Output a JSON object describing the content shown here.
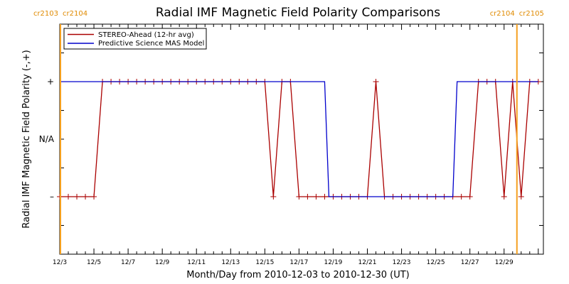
{
  "chart_data": {
    "type": "line",
    "title": "Radial IMF Magnetic Field Polarity Comparisons",
    "xlabel": "Month/Day from 2010-12-03 to 2010-12-30 (UT)",
    "ylabel": "Radial IMF Magnetic Field Polarity (-,+)",
    "xlim": [
      "2010-12-03",
      "2010-12-30"
    ],
    "ylim": [
      -2,
      2
    ],
    "x_ticks": [
      "12/3",
      "12/5",
      "12/7",
      "12/9",
      "12/11",
      "12/13",
      "12/15",
      "12/17",
      "12/19",
      "12/21",
      "12/23",
      "12/25",
      "12/27",
      "12/29"
    ],
    "y_ticks": [
      {
        "value": 1,
        "label": "+"
      },
      {
        "value": 0,
        "label": "N/A"
      },
      {
        "value": -1,
        "label": "–"
      }
    ],
    "carrington_markers": [
      {
        "x": "2010-12-03 00:00",
        "label_left": "cr2103",
        "label_right": "cr2104",
        "position": "top-left"
      },
      {
        "x": "2010-12-29 18:00",
        "label_left": "cr2104",
        "label_right": "cr2105",
        "position": "top-right"
      }
    ],
    "legend": {
      "placement": "top-left",
      "entries": [
        "STEREO-Ahead (12-hr avg)",
        "Predictive Science MAS Model"
      ]
    },
    "series": [
      {
        "name": "STEREO-Ahead (12-hr avg)",
        "color": "#aa0000",
        "marker": "plus",
        "points": [
          [
            "2010-12-03 00:00",
            -1
          ],
          [
            "2010-12-03 12:00",
            -1
          ],
          [
            "2010-12-04 00:00",
            -1
          ],
          [
            "2010-12-04 12:00",
            -1
          ],
          [
            "2010-12-05 00:00",
            -1
          ],
          [
            "2010-12-05 12:00",
            1
          ],
          [
            "2010-12-06 00:00",
            1
          ],
          [
            "2010-12-06 12:00",
            1
          ],
          [
            "2010-12-07 00:00",
            1
          ],
          [
            "2010-12-07 12:00",
            1
          ],
          [
            "2010-12-08 00:00",
            1
          ],
          [
            "2010-12-08 12:00",
            1
          ],
          [
            "2010-12-09 00:00",
            1
          ],
          [
            "2010-12-09 12:00",
            1
          ],
          [
            "2010-12-10 00:00",
            1
          ],
          [
            "2010-12-10 12:00",
            1
          ],
          [
            "2010-12-11 00:00",
            1
          ],
          [
            "2010-12-11 12:00",
            1
          ],
          [
            "2010-12-12 00:00",
            1
          ],
          [
            "2010-12-12 12:00",
            1
          ],
          [
            "2010-12-13 00:00",
            1
          ],
          [
            "2010-12-13 12:00",
            1
          ],
          [
            "2010-12-14 00:00",
            1
          ],
          [
            "2010-12-14 12:00",
            1
          ],
          [
            "2010-12-15 00:00",
            1
          ],
          [
            "2010-12-15 12:00",
            -1
          ],
          [
            "2010-12-16 00:00",
            1
          ],
          [
            "2010-12-16 12:00",
            1
          ],
          [
            "2010-12-17 00:00",
            -1
          ],
          [
            "2010-12-17 12:00",
            -1
          ],
          [
            "2010-12-18 00:00",
            -1
          ],
          [
            "2010-12-18 12:00",
            -1
          ],
          [
            "2010-12-19 00:00",
            -1
          ],
          [
            "2010-12-19 12:00",
            -1
          ],
          [
            "2010-12-20 00:00",
            -1
          ],
          [
            "2010-12-20 12:00",
            -1
          ],
          [
            "2010-12-21 00:00",
            -1
          ],
          [
            "2010-12-21 12:00",
            1
          ],
          [
            "2010-12-22 00:00",
            -1
          ],
          [
            "2010-12-22 12:00",
            -1
          ],
          [
            "2010-12-23 00:00",
            -1
          ],
          [
            "2010-12-23 12:00",
            -1
          ],
          [
            "2010-12-24 00:00",
            -1
          ],
          [
            "2010-12-24 12:00",
            -1
          ],
          [
            "2010-12-25 00:00",
            -1
          ],
          [
            "2010-12-25 12:00",
            -1
          ],
          [
            "2010-12-26 00:00",
            -1
          ],
          [
            "2010-12-26 12:00",
            -1
          ],
          [
            "2010-12-27 00:00",
            -1
          ],
          [
            "2010-12-27 12:00",
            1
          ],
          [
            "2010-12-28 00:00",
            1
          ],
          [
            "2010-12-28 12:00",
            1
          ],
          [
            "2010-12-29 00:00",
            -1
          ],
          [
            "2010-12-29 12:00",
            1
          ],
          [
            "2010-12-30 00:00",
            -1
          ],
          [
            "2010-12-30 12:00",
            1
          ],
          [
            "2010-12-31 00:00",
            1
          ]
        ]
      },
      {
        "name": "Predictive Science MAS Model",
        "color": "#0000cc",
        "marker": "none",
        "points": [
          [
            "2010-12-03 00:00",
            1
          ],
          [
            "2010-12-18 12:00",
            1
          ],
          [
            "2010-12-18 18:00",
            -1
          ],
          [
            "2010-12-26 00:00",
            -1
          ],
          [
            "2010-12-26 06:00",
            1
          ],
          [
            "2010-12-31 00:00",
            1
          ]
        ]
      }
    ]
  }
}
